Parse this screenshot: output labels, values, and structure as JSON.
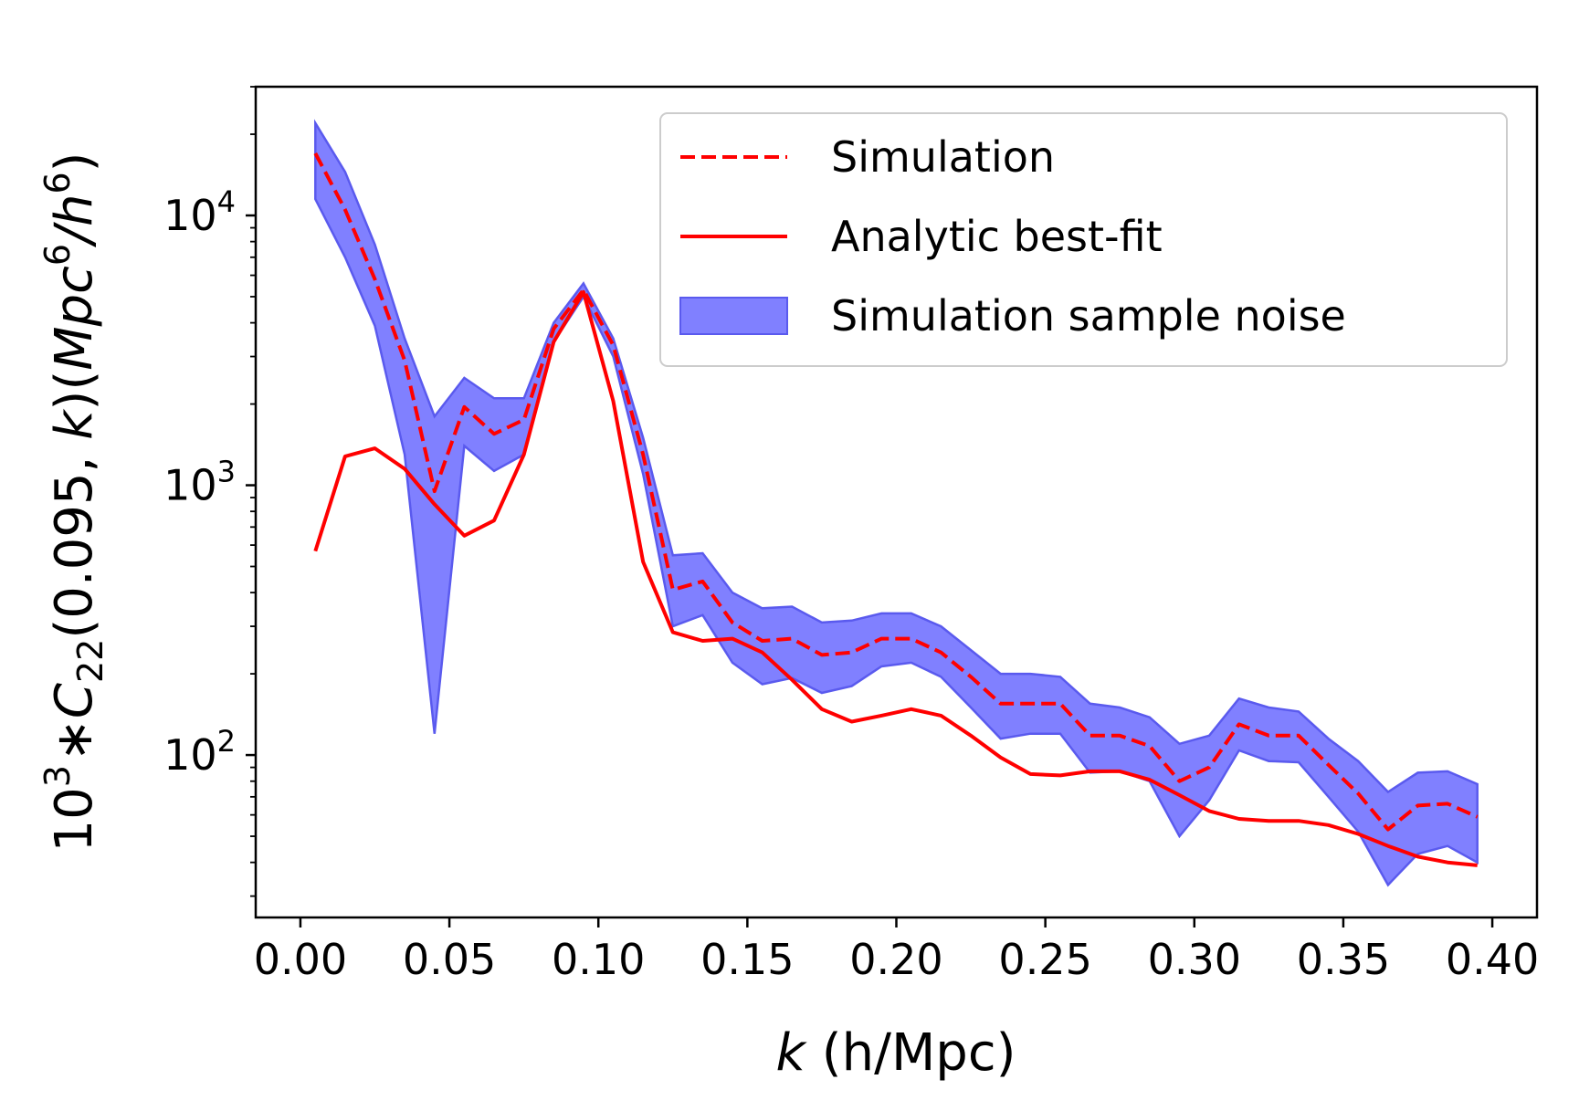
{
  "chart_data": {
    "type": "line",
    "xlabel_italic": "k",
    "xlabel_rest": " (h/Mpc)",
    "ylabel": {
      "base": "10",
      "base_exp": "3",
      "mult": "∗",
      "C": "C",
      "C_sub": "22",
      "args": "(0.095, ",
      "k": "k",
      "close": ")(",
      "mpc": "Mpc",
      "mpc_exp": "6",
      "slash": "/",
      "h": "h",
      "h_exp": "6",
      "end": ")"
    },
    "x_scale": "linear",
    "y_scale": "log",
    "xlim": [
      -0.015,
      0.415
    ],
    "ylim": [
      25,
      30000
    ],
    "x_ticks": [
      {
        "value": 0.0,
        "label": "0.00"
      },
      {
        "value": 0.05,
        "label": "0.05"
      },
      {
        "value": 0.1,
        "label": "0.10"
      },
      {
        "value": 0.15,
        "label": "0.15"
      },
      {
        "value": 0.2,
        "label": "0.20"
      },
      {
        "value": 0.25,
        "label": "0.25"
      },
      {
        "value": 0.3,
        "label": "0.30"
      },
      {
        "value": 0.35,
        "label": "0.35"
      },
      {
        "value": 0.4,
        "label": "0.40"
      }
    ],
    "y_ticks": [
      {
        "value": 100,
        "base": "10",
        "exp": "2"
      },
      {
        "value": 1000,
        "base": "10",
        "exp": "3"
      },
      {
        "value": 10000,
        "base": "10",
        "exp": "4"
      }
    ],
    "x": [
      0.005,
      0.015,
      0.025,
      0.035,
      0.045,
      0.055,
      0.065,
      0.075,
      0.085,
      0.095,
      0.105,
      0.115,
      0.125,
      0.135,
      0.145,
      0.155,
      0.165,
      0.175,
      0.185,
      0.195,
      0.205,
      0.215,
      0.225,
      0.235,
      0.245,
      0.255,
      0.265,
      0.275,
      0.285,
      0.295,
      0.305,
      0.315,
      0.325,
      0.335,
      0.345,
      0.355,
      0.365,
      0.375,
      0.385,
      0.395
    ],
    "series": [
      {
        "name": "Simulation",
        "style": "dashed",
        "color": "#ff0000",
        "values": [
          17000,
          10500,
          5800,
          2900,
          950,
          1950,
          1550,
          1750,
          3800,
          5300,
          3300,
          1300,
          410,
          440,
          310,
          265,
          270,
          235,
          240,
          270,
          270,
          240,
          195,
          155,
          155,
          155,
          118,
          118,
          108,
          80,
          90,
          130,
          118,
          118,
          92,
          72,
          53,
          65,
          66,
          59
        ]
      },
      {
        "name": "Analytic best-fit",
        "style": "solid",
        "color": "#ff0000",
        "values": [
          570,
          1280,
          1370,
          1150,
          850,
          650,
          740,
          1300,
          3400,
          5200,
          2050,
          520,
          285,
          265,
          270,
          240,
          190,
          148,
          133,
          140,
          148,
          140,
          118,
          98,
          85,
          84,
          87,
          87,
          81,
          71,
          62,
          58,
          57,
          57,
          55,
          51,
          46,
          42,
          40,
          39
        ]
      }
    ],
    "band": {
      "name": "Simulation sample noise",
      "fill": "#8080ff",
      "edge": "#5a5aee",
      "upper": [
        22000,
        14500,
        7800,
        3500,
        1800,
        2500,
        2100,
        2100,
        4000,
        5600,
        3500,
        1500,
        550,
        560,
        400,
        350,
        355,
        310,
        315,
        335,
        335,
        300,
        245,
        200,
        200,
        195,
        155,
        150,
        138,
        110,
        118,
        162,
        150,
        145,
        115,
        95,
        73,
        86,
        87,
        78
      ],
      "lower": [
        11500,
        7000,
        3900,
        1300,
        120,
        1400,
        1130,
        1300,
        3400,
        5000,
        3000,
        1100,
        300,
        330,
        220,
        183,
        193,
        170,
        180,
        213,
        220,
        195,
        150,
        115,
        120,
        120,
        86,
        87,
        80,
        50,
        68,
        104,
        95,
        94,
        70,
        52,
        33,
        43,
        46,
        40
      ]
    },
    "legend_position": "upper right",
    "grid": false
  }
}
